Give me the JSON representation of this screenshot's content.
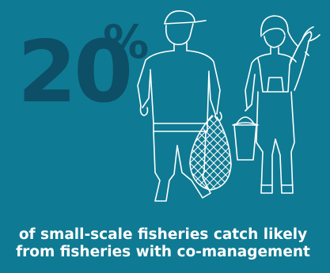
{
  "stat": {
    "value": "20",
    "unit": "%"
  },
  "caption": {
    "line1": "of small-scale fisheries catch likely",
    "line2": "from fisheries with co-management"
  },
  "colors": {
    "background": "#0f7a93",
    "stat_text": "#0d4f66",
    "line_art": "#ffffff",
    "caption_text": "#ffffff"
  },
  "icons": [
    "fisherman-with-net-icon",
    "fisherwoman-with-fish-icon"
  ]
}
